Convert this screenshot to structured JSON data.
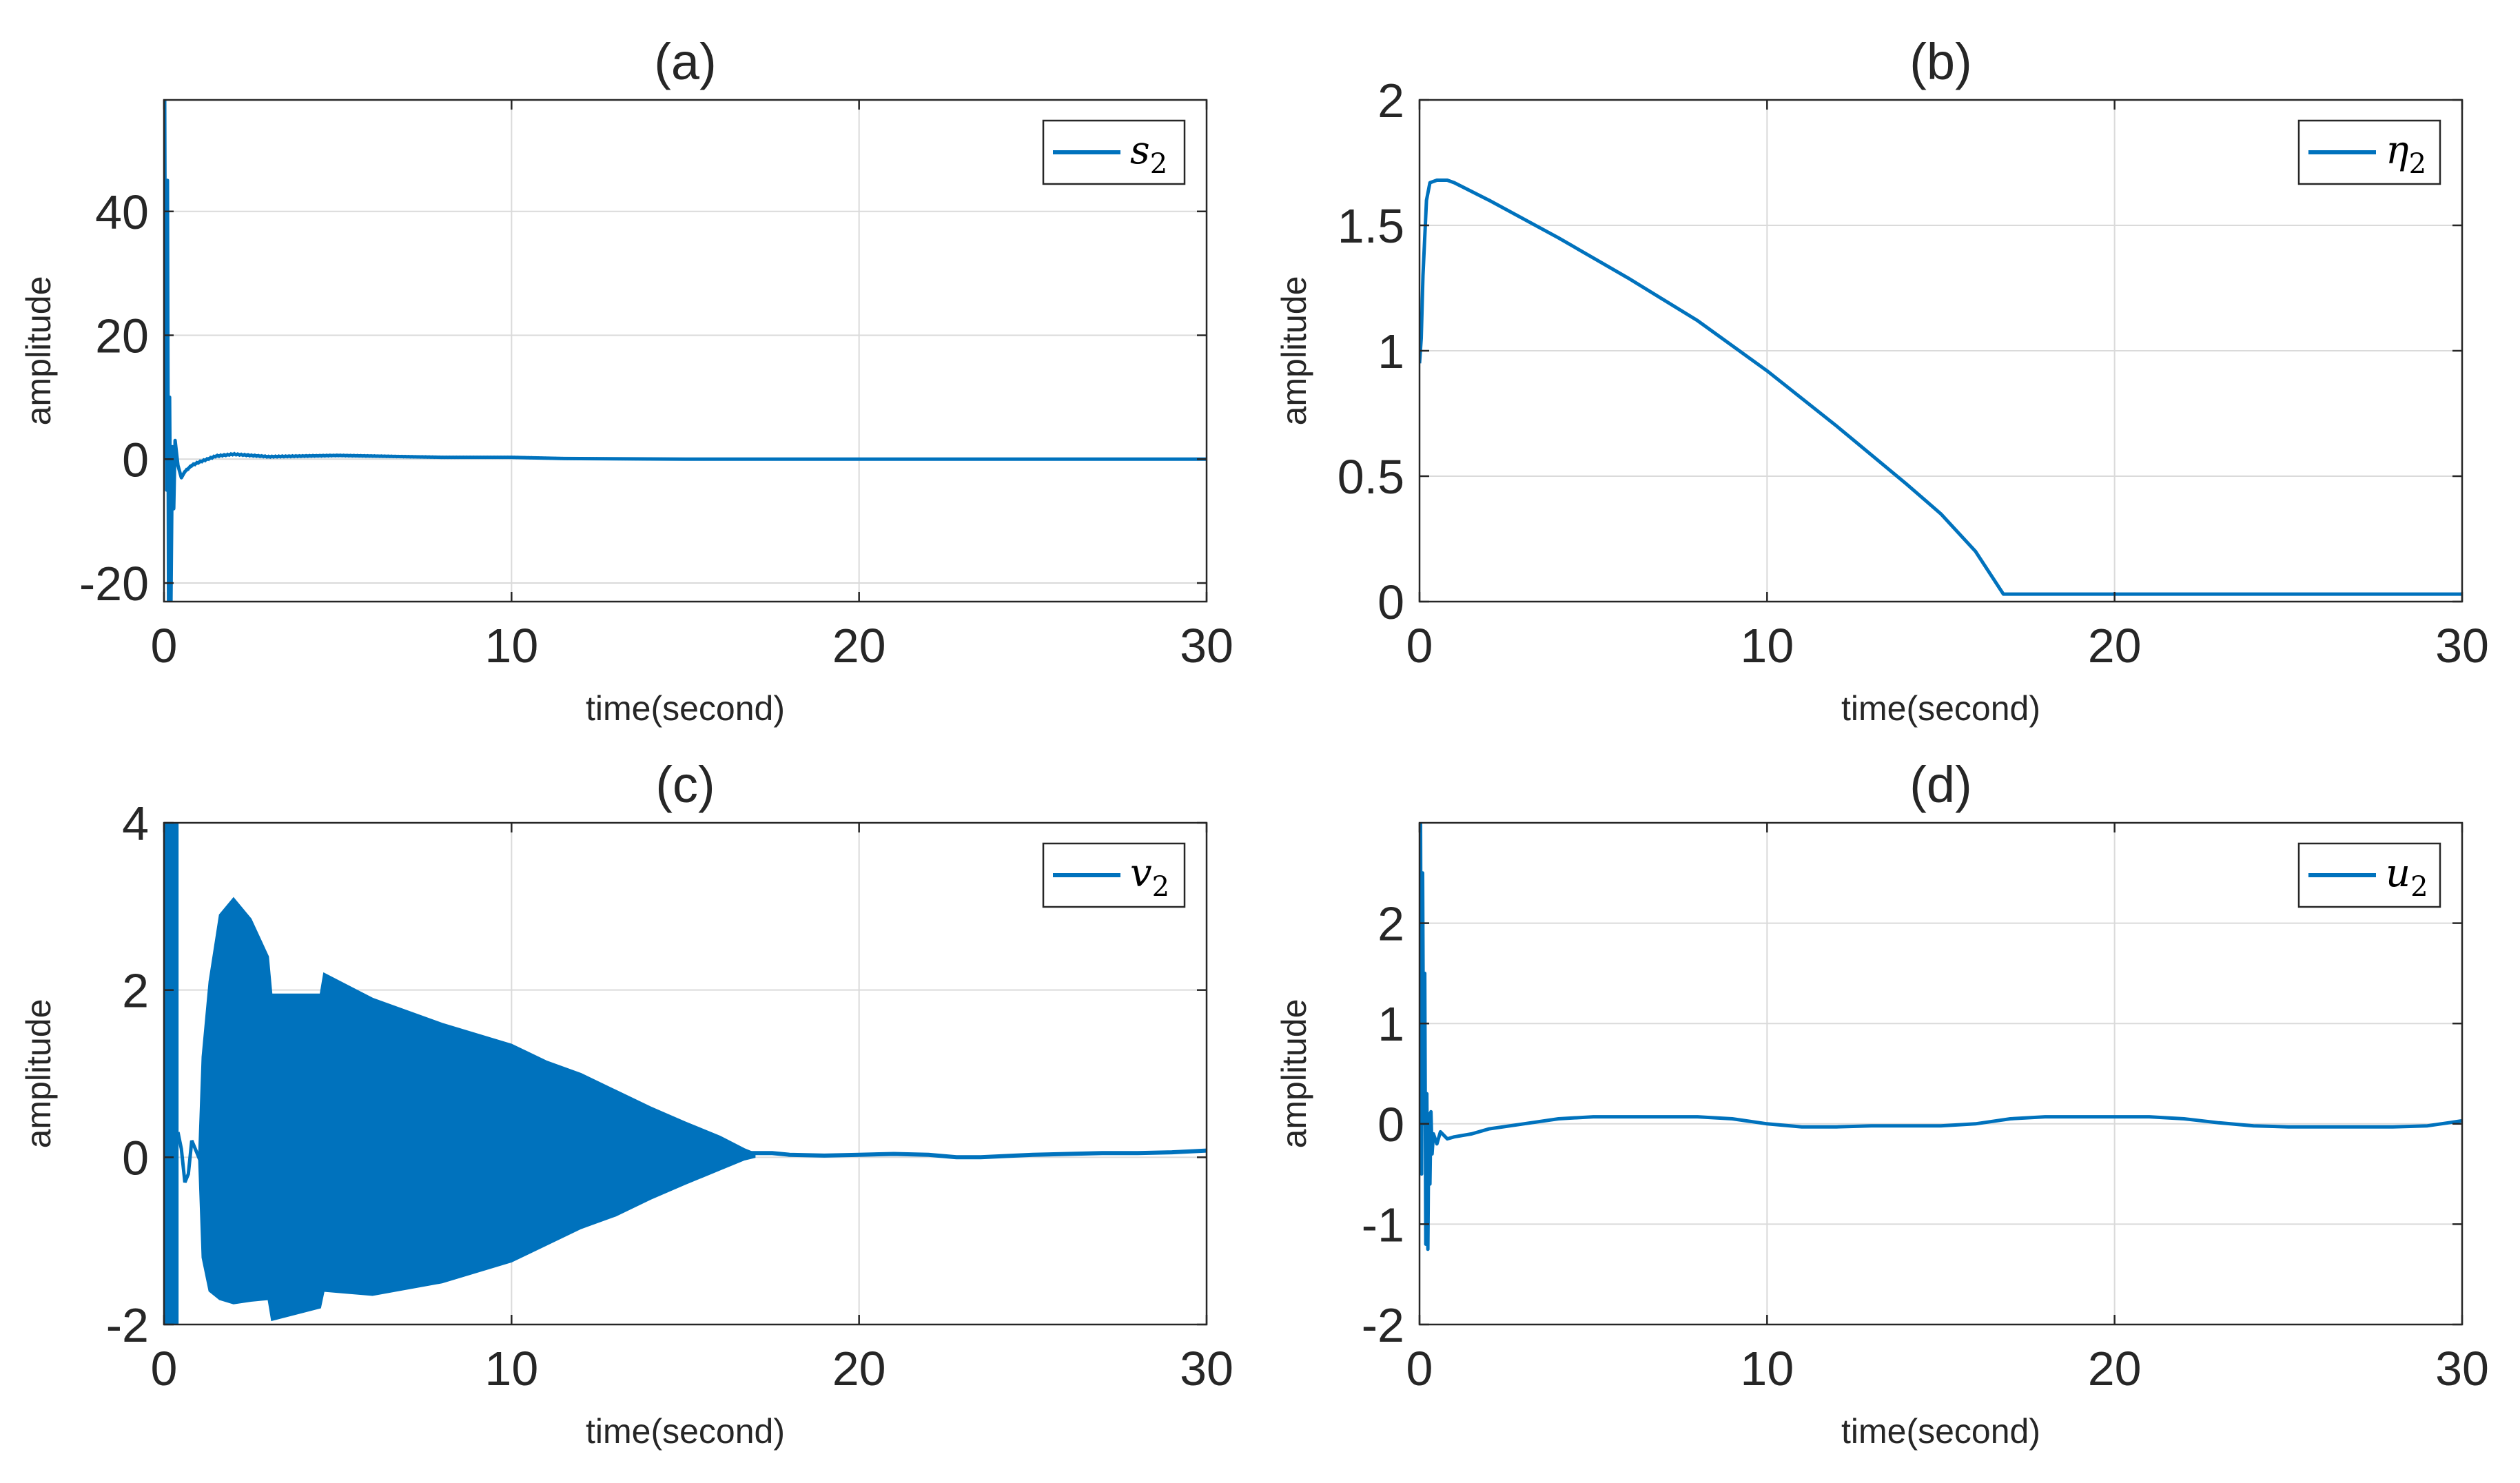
{
  "figure": {
    "colors": {
      "series": "#0072BD",
      "grid": "#DADADA",
      "axis": "#262626"
    }
  },
  "chart_data": [
    {
      "type": "line",
      "title": "(a)",
      "xlabel": "time(second)",
      "ylabel": "amplitude",
      "xlim": [
        0,
        30
      ],
      "ylim": [
        -23,
        58
      ],
      "xticks": [
        0,
        10,
        20,
        30
      ],
      "yticks": [
        -20,
        0,
        20,
        40
      ],
      "grid": true,
      "legend": {
        "position": "top-right",
        "entries": [
          "s2"
        ]
      },
      "series": [
        {
          "name": "s2",
          "noise_amplitude": 0.15,
          "x": [
            0,
            0.02,
            0.04,
            0.06,
            0.08,
            0.1,
            0.13,
            0.16,
            0.2,
            0.24,
            0.28,
            0.32,
            0.4,
            0.5,
            0.6,
            0.8,
            1.0,
            1.5,
            2.0,
            3.0,
            5.0,
            8.0,
            10.0,
            11.5,
            15.0,
            20.0,
            25.0,
            30.0
          ],
          "y": [
            0,
            58,
            20,
            38,
            -5,
            45,
            -23,
            10,
            -23,
            2,
            -8,
            3,
            -1,
            -3,
            -2,
            -1,
            -0.5,
            0.5,
            0.8,
            0.4,
            0.6,
            0.3,
            0.3,
            0.1,
            0,
            0,
            0,
            0
          ]
        }
      ]
    },
    {
      "type": "line",
      "title": "(b)",
      "xlabel": "time(second)",
      "ylabel": "amplitude",
      "xlim": [
        0,
        30
      ],
      "ylim": [
        0,
        2
      ],
      "xticks": [
        0,
        10,
        20,
        30
      ],
      "yticks": [
        0,
        0.5,
        1,
        1.5,
        2
      ],
      "grid": true,
      "legend": {
        "position": "top-right",
        "entries": [
          "η2"
        ]
      },
      "series": [
        {
          "name": "η2",
          "x": [
            0,
            0.05,
            0.1,
            0.2,
            0.3,
            0.5,
            0.8,
            1.0,
            2.0,
            4.0,
            6.0,
            8.0,
            10.0,
            12.0,
            14.0,
            15.0,
            16.0,
            16.8,
            17.0,
            20.0,
            25.0,
            30.0
          ],
          "y": [
            0.95,
            1.05,
            1.3,
            1.6,
            1.67,
            1.68,
            1.68,
            1.67,
            1.6,
            1.45,
            1.29,
            1.12,
            0.92,
            0.7,
            0.47,
            0.35,
            0.2,
            0.03,
            0.03,
            0.03,
            0.03,
            0.03
          ]
        }
      ]
    },
    {
      "type": "line",
      "title": "(c)",
      "xlabel": "time(second)",
      "ylabel": "amplitude",
      "xlim": [
        0,
        30
      ],
      "ylim": [
        -2,
        4
      ],
      "xticks": [
        0,
        10,
        20,
        30
      ],
      "yticks": [
        -2,
        0,
        2,
        4
      ],
      "grid": true,
      "legend": {
        "position": "top-right",
        "entries": [
          "v2"
        ]
      },
      "series": [
        {
          "name": "v2",
          "early_spikes_x": [
            0.05,
            0.1,
            0.15,
            0.2,
            0.25,
            0.3,
            0.35
          ],
          "gap_curve": {
            "x": [
              0.4,
              0.5,
              0.6,
              0.7,
              0.8,
              0.9,
              1.0,
              1.1,
              1.2
            ],
            "y": [
              0.3,
              0.1,
              -0.3,
              -0.2,
              0.2,
              0.1,
              0.0,
              0.05,
              0.0
            ]
          },
          "oscillation_band": {
            "x": [
              1.0,
              1.1,
              1.3,
              1.6,
              2.0,
              2.5,
              3.0,
              3.1,
              4.5,
              4.6,
              6.0,
              8.0,
              10.0,
              11.0,
              12.0,
              13.0,
              14.0,
              15.0,
              16.0,
              16.7,
              17.0
            ],
            "upper": [
              0.0,
              1.2,
              2.1,
              2.9,
              3.1,
              2.85,
              2.4,
              1.95,
              1.95,
              2.2,
              1.9,
              1.6,
              1.35,
              1.15,
              1.0,
              0.8,
              0.6,
              0.42,
              0.25,
              0.1,
              0.05
            ],
            "lower": [
              0.0,
              -1.2,
              -1.6,
              -1.7,
              -1.75,
              -1.72,
              -1.7,
              -1.95,
              -1.8,
              -1.6,
              -1.65,
              -1.5,
              -1.25,
              -1.05,
              -0.85,
              -0.7,
              -0.5,
              -0.32,
              -0.15,
              -0.03,
              0.0
            ]
          },
          "tail": {
            "x": [
              16.7,
              17.5,
              18.0,
              19.0,
              20.0,
              21.0,
              22.0,
              22.8,
              23.5,
              24.5,
              25.0,
              26.0,
              27.0,
              28.0,
              29.0,
              30.0
            ],
            "y": [
              0.05,
              0.05,
              0.03,
              0.02,
              0.03,
              0.04,
              0.03,
              0.0,
              0.0,
              0.02,
              0.03,
              0.04,
              0.05,
              0.05,
              0.06,
              0.08
            ]
          }
        }
      ]
    },
    {
      "type": "line",
      "title": "(d)",
      "xlabel": "time(second)",
      "ylabel": "amplitude",
      "xlim": [
        0,
        30
      ],
      "ylim": [
        -2,
        3
      ],
      "xticks": [
        0,
        10,
        20,
        30
      ],
      "yticks": [
        -2,
        -1,
        0,
        1,
        2
      ],
      "grid": true,
      "legend": {
        "position": "top-right",
        "entries": [
          "u2"
        ]
      },
      "series": [
        {
          "name": "u2",
          "x": [
            0,
            0.03,
            0.06,
            0.09,
            0.12,
            0.15,
            0.18,
            0.21,
            0.24,
            0.27,
            0.3,
            0.33,
            0.36,
            0.4,
            0.5,
            0.6,
            0.8,
            1.0,
            1.5,
            2.0,
            3.0,
            4.0,
            5.0,
            6.0,
            7.0,
            8.0,
            9.0,
            10.0,
            11.0,
            12.0,
            13.0,
            14.0,
            15.0,
            16.0,
            17.0,
            18.0,
            19.0,
            20.0,
            21.0,
            22.0,
            23.0,
            24.0,
            25.0,
            26.0,
            27.0,
            28.0,
            29.0,
            30.0
          ],
          "y": [
            0,
            3.0,
            -0.5,
            2.5,
            0.0,
            1.5,
            -1.2,
            0.3,
            -1.25,
            0.1,
            -0.6,
            0.12,
            -0.3,
            -0.1,
            -0.2,
            -0.08,
            -0.15,
            -0.13,
            -0.1,
            -0.05,
            0.0,
            0.05,
            0.07,
            0.07,
            0.07,
            0.07,
            0.05,
            0.0,
            -0.03,
            -0.03,
            -0.02,
            -0.02,
            -0.02,
            0.0,
            0.05,
            0.07,
            0.07,
            0.07,
            0.07,
            0.05,
            0.01,
            -0.02,
            -0.03,
            -0.03,
            -0.03,
            -0.03,
            -0.02,
            0.03
          ]
        }
      ]
    }
  ]
}
